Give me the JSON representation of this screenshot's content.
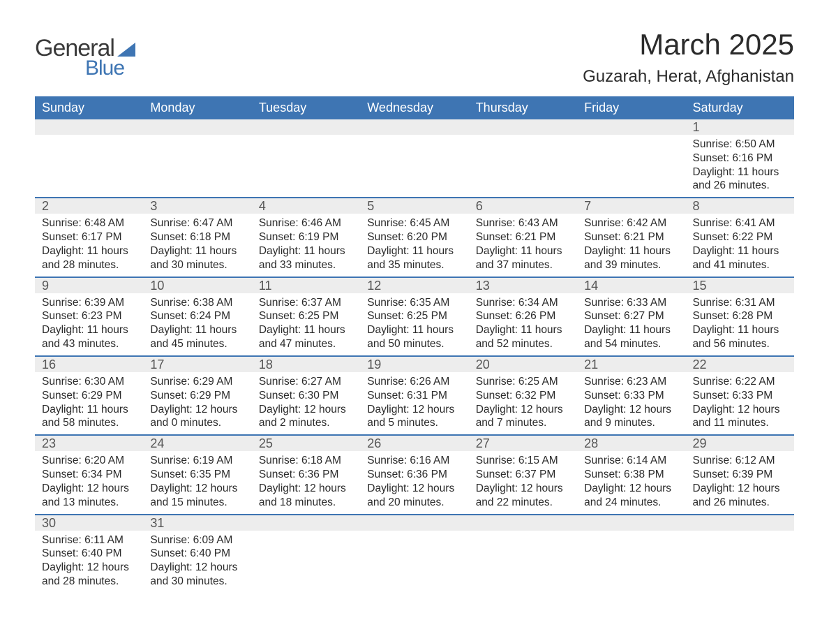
{
  "logo": {
    "text_general": "General",
    "text_blue": "Blue"
  },
  "header": {
    "month_title": "March 2025",
    "location": "Guzarah, Herat, Afghanistan"
  },
  "colors": {
    "header_bg": "#3e75b3",
    "header_text": "#ffffff",
    "daynum_bg": "#ededed",
    "row_divider": "#3e75b3",
    "body_text": "#2b2b2b",
    "logo_blue": "#3e75b3",
    "logo_gray": "#3a3a3a",
    "background": "#ffffff"
  },
  "typography": {
    "month_title_fontsize": 42,
    "location_fontsize": 24,
    "dayheader_fontsize": 18,
    "daynum_fontsize": 18,
    "detail_fontsize": 15.5,
    "logo_fontsize": 34
  },
  "day_headers": [
    "Sunday",
    "Monday",
    "Tuesday",
    "Wednesday",
    "Thursday",
    "Friday",
    "Saturday"
  ],
  "weeks": [
    [
      null,
      null,
      null,
      null,
      null,
      null,
      {
        "n": "1",
        "sunrise": "Sunrise: 6:50 AM",
        "sunset": "Sunset: 6:16 PM",
        "d1": "Daylight: 11 hours",
        "d2": "and 26 minutes."
      }
    ],
    [
      {
        "n": "2",
        "sunrise": "Sunrise: 6:48 AM",
        "sunset": "Sunset: 6:17 PM",
        "d1": "Daylight: 11 hours",
        "d2": "and 28 minutes."
      },
      {
        "n": "3",
        "sunrise": "Sunrise: 6:47 AM",
        "sunset": "Sunset: 6:18 PM",
        "d1": "Daylight: 11 hours",
        "d2": "and 30 minutes."
      },
      {
        "n": "4",
        "sunrise": "Sunrise: 6:46 AM",
        "sunset": "Sunset: 6:19 PM",
        "d1": "Daylight: 11 hours",
        "d2": "and 33 minutes."
      },
      {
        "n": "5",
        "sunrise": "Sunrise: 6:45 AM",
        "sunset": "Sunset: 6:20 PM",
        "d1": "Daylight: 11 hours",
        "d2": "and 35 minutes."
      },
      {
        "n": "6",
        "sunrise": "Sunrise: 6:43 AM",
        "sunset": "Sunset: 6:21 PM",
        "d1": "Daylight: 11 hours",
        "d2": "and 37 minutes."
      },
      {
        "n": "7",
        "sunrise": "Sunrise: 6:42 AM",
        "sunset": "Sunset: 6:21 PM",
        "d1": "Daylight: 11 hours",
        "d2": "and 39 minutes."
      },
      {
        "n": "8",
        "sunrise": "Sunrise: 6:41 AM",
        "sunset": "Sunset: 6:22 PM",
        "d1": "Daylight: 11 hours",
        "d2": "and 41 minutes."
      }
    ],
    [
      {
        "n": "9",
        "sunrise": "Sunrise: 6:39 AM",
        "sunset": "Sunset: 6:23 PM",
        "d1": "Daylight: 11 hours",
        "d2": "and 43 minutes."
      },
      {
        "n": "10",
        "sunrise": "Sunrise: 6:38 AM",
        "sunset": "Sunset: 6:24 PM",
        "d1": "Daylight: 11 hours",
        "d2": "and 45 minutes."
      },
      {
        "n": "11",
        "sunrise": "Sunrise: 6:37 AM",
        "sunset": "Sunset: 6:25 PM",
        "d1": "Daylight: 11 hours",
        "d2": "and 47 minutes."
      },
      {
        "n": "12",
        "sunrise": "Sunrise: 6:35 AM",
        "sunset": "Sunset: 6:25 PM",
        "d1": "Daylight: 11 hours",
        "d2": "and 50 minutes."
      },
      {
        "n": "13",
        "sunrise": "Sunrise: 6:34 AM",
        "sunset": "Sunset: 6:26 PM",
        "d1": "Daylight: 11 hours",
        "d2": "and 52 minutes."
      },
      {
        "n": "14",
        "sunrise": "Sunrise: 6:33 AM",
        "sunset": "Sunset: 6:27 PM",
        "d1": "Daylight: 11 hours",
        "d2": "and 54 minutes."
      },
      {
        "n": "15",
        "sunrise": "Sunrise: 6:31 AM",
        "sunset": "Sunset: 6:28 PM",
        "d1": "Daylight: 11 hours",
        "d2": "and 56 minutes."
      }
    ],
    [
      {
        "n": "16",
        "sunrise": "Sunrise: 6:30 AM",
        "sunset": "Sunset: 6:29 PM",
        "d1": "Daylight: 11 hours",
        "d2": "and 58 minutes."
      },
      {
        "n": "17",
        "sunrise": "Sunrise: 6:29 AM",
        "sunset": "Sunset: 6:29 PM",
        "d1": "Daylight: 12 hours",
        "d2": "and 0 minutes."
      },
      {
        "n": "18",
        "sunrise": "Sunrise: 6:27 AM",
        "sunset": "Sunset: 6:30 PM",
        "d1": "Daylight: 12 hours",
        "d2": "and 2 minutes."
      },
      {
        "n": "19",
        "sunrise": "Sunrise: 6:26 AM",
        "sunset": "Sunset: 6:31 PM",
        "d1": "Daylight: 12 hours",
        "d2": "and 5 minutes."
      },
      {
        "n": "20",
        "sunrise": "Sunrise: 6:25 AM",
        "sunset": "Sunset: 6:32 PM",
        "d1": "Daylight: 12 hours",
        "d2": "and 7 minutes."
      },
      {
        "n": "21",
        "sunrise": "Sunrise: 6:23 AM",
        "sunset": "Sunset: 6:33 PM",
        "d1": "Daylight: 12 hours",
        "d2": "and 9 minutes."
      },
      {
        "n": "22",
        "sunrise": "Sunrise: 6:22 AM",
        "sunset": "Sunset: 6:33 PM",
        "d1": "Daylight: 12 hours",
        "d2": "and 11 minutes."
      }
    ],
    [
      {
        "n": "23",
        "sunrise": "Sunrise: 6:20 AM",
        "sunset": "Sunset: 6:34 PM",
        "d1": "Daylight: 12 hours",
        "d2": "and 13 minutes."
      },
      {
        "n": "24",
        "sunrise": "Sunrise: 6:19 AM",
        "sunset": "Sunset: 6:35 PM",
        "d1": "Daylight: 12 hours",
        "d2": "and 15 minutes."
      },
      {
        "n": "25",
        "sunrise": "Sunrise: 6:18 AM",
        "sunset": "Sunset: 6:36 PM",
        "d1": "Daylight: 12 hours",
        "d2": "and 18 minutes."
      },
      {
        "n": "26",
        "sunrise": "Sunrise: 6:16 AM",
        "sunset": "Sunset: 6:36 PM",
        "d1": "Daylight: 12 hours",
        "d2": "and 20 minutes."
      },
      {
        "n": "27",
        "sunrise": "Sunrise: 6:15 AM",
        "sunset": "Sunset: 6:37 PM",
        "d1": "Daylight: 12 hours",
        "d2": "and 22 minutes."
      },
      {
        "n": "28",
        "sunrise": "Sunrise: 6:14 AM",
        "sunset": "Sunset: 6:38 PM",
        "d1": "Daylight: 12 hours",
        "d2": "and 24 minutes."
      },
      {
        "n": "29",
        "sunrise": "Sunrise: 6:12 AM",
        "sunset": "Sunset: 6:39 PM",
        "d1": "Daylight: 12 hours",
        "d2": "and 26 minutes."
      }
    ],
    [
      {
        "n": "30",
        "sunrise": "Sunrise: 6:11 AM",
        "sunset": "Sunset: 6:40 PM",
        "d1": "Daylight: 12 hours",
        "d2": "and 28 minutes."
      },
      {
        "n": "31",
        "sunrise": "Sunrise: 6:09 AM",
        "sunset": "Sunset: 6:40 PM",
        "d1": "Daylight: 12 hours",
        "d2": "and 30 minutes."
      },
      null,
      null,
      null,
      null,
      null
    ]
  ]
}
